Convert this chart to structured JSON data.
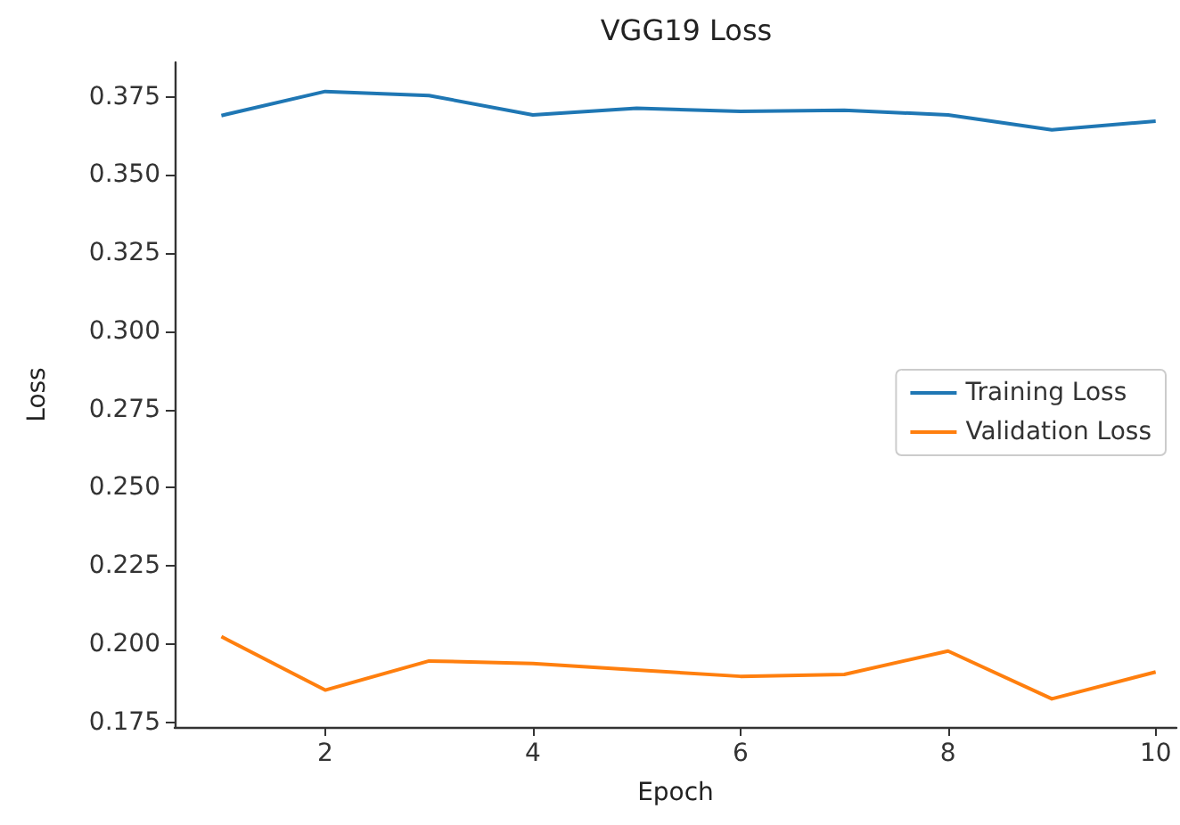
{
  "chart_data": {
    "type": "line",
    "title": "VGG19 Loss",
    "xlabel": "Epoch",
    "ylabel": "Loss",
    "x": [
      1,
      2,
      3,
      4,
      5,
      6,
      7,
      8,
      9,
      10
    ],
    "series": [
      {
        "name": "Training Loss",
        "color": "#1f77b4",
        "values": [
          0.369,
          0.3767,
          0.3754,
          0.3692,
          0.3713,
          0.3703,
          0.3707,
          0.3692,
          0.3644,
          0.3672
        ]
      },
      {
        "name": "Validation Loss",
        "color": "#ff7f0e",
        "values": [
          0.2024,
          0.1853,
          0.1946,
          0.1938,
          0.1917,
          0.1897,
          0.1903,
          0.1978,
          0.1825,
          0.1911
        ]
      }
    ],
    "xlim": [
      0.55,
      10.2
    ],
    "xticks": [
      2,
      4,
      6,
      8,
      10
    ],
    "ylim": [
      0.1735,
      0.386
    ],
    "yticks": [
      0.175,
      {
        "value": 0.2,
        "label": "0.200"
      },
      0.225,
      {
        "value": 0.25,
        "label": "0.250"
      },
      0.275,
      {
        "value": 0.3,
        "label": "0.300"
      },
      0.325,
      {
        "value": 0.35,
        "label": "0.350"
      },
      0.375
    ],
    "legend": "right",
    "grid": false,
    "marker": "none",
    "line_style": "solid"
  }
}
